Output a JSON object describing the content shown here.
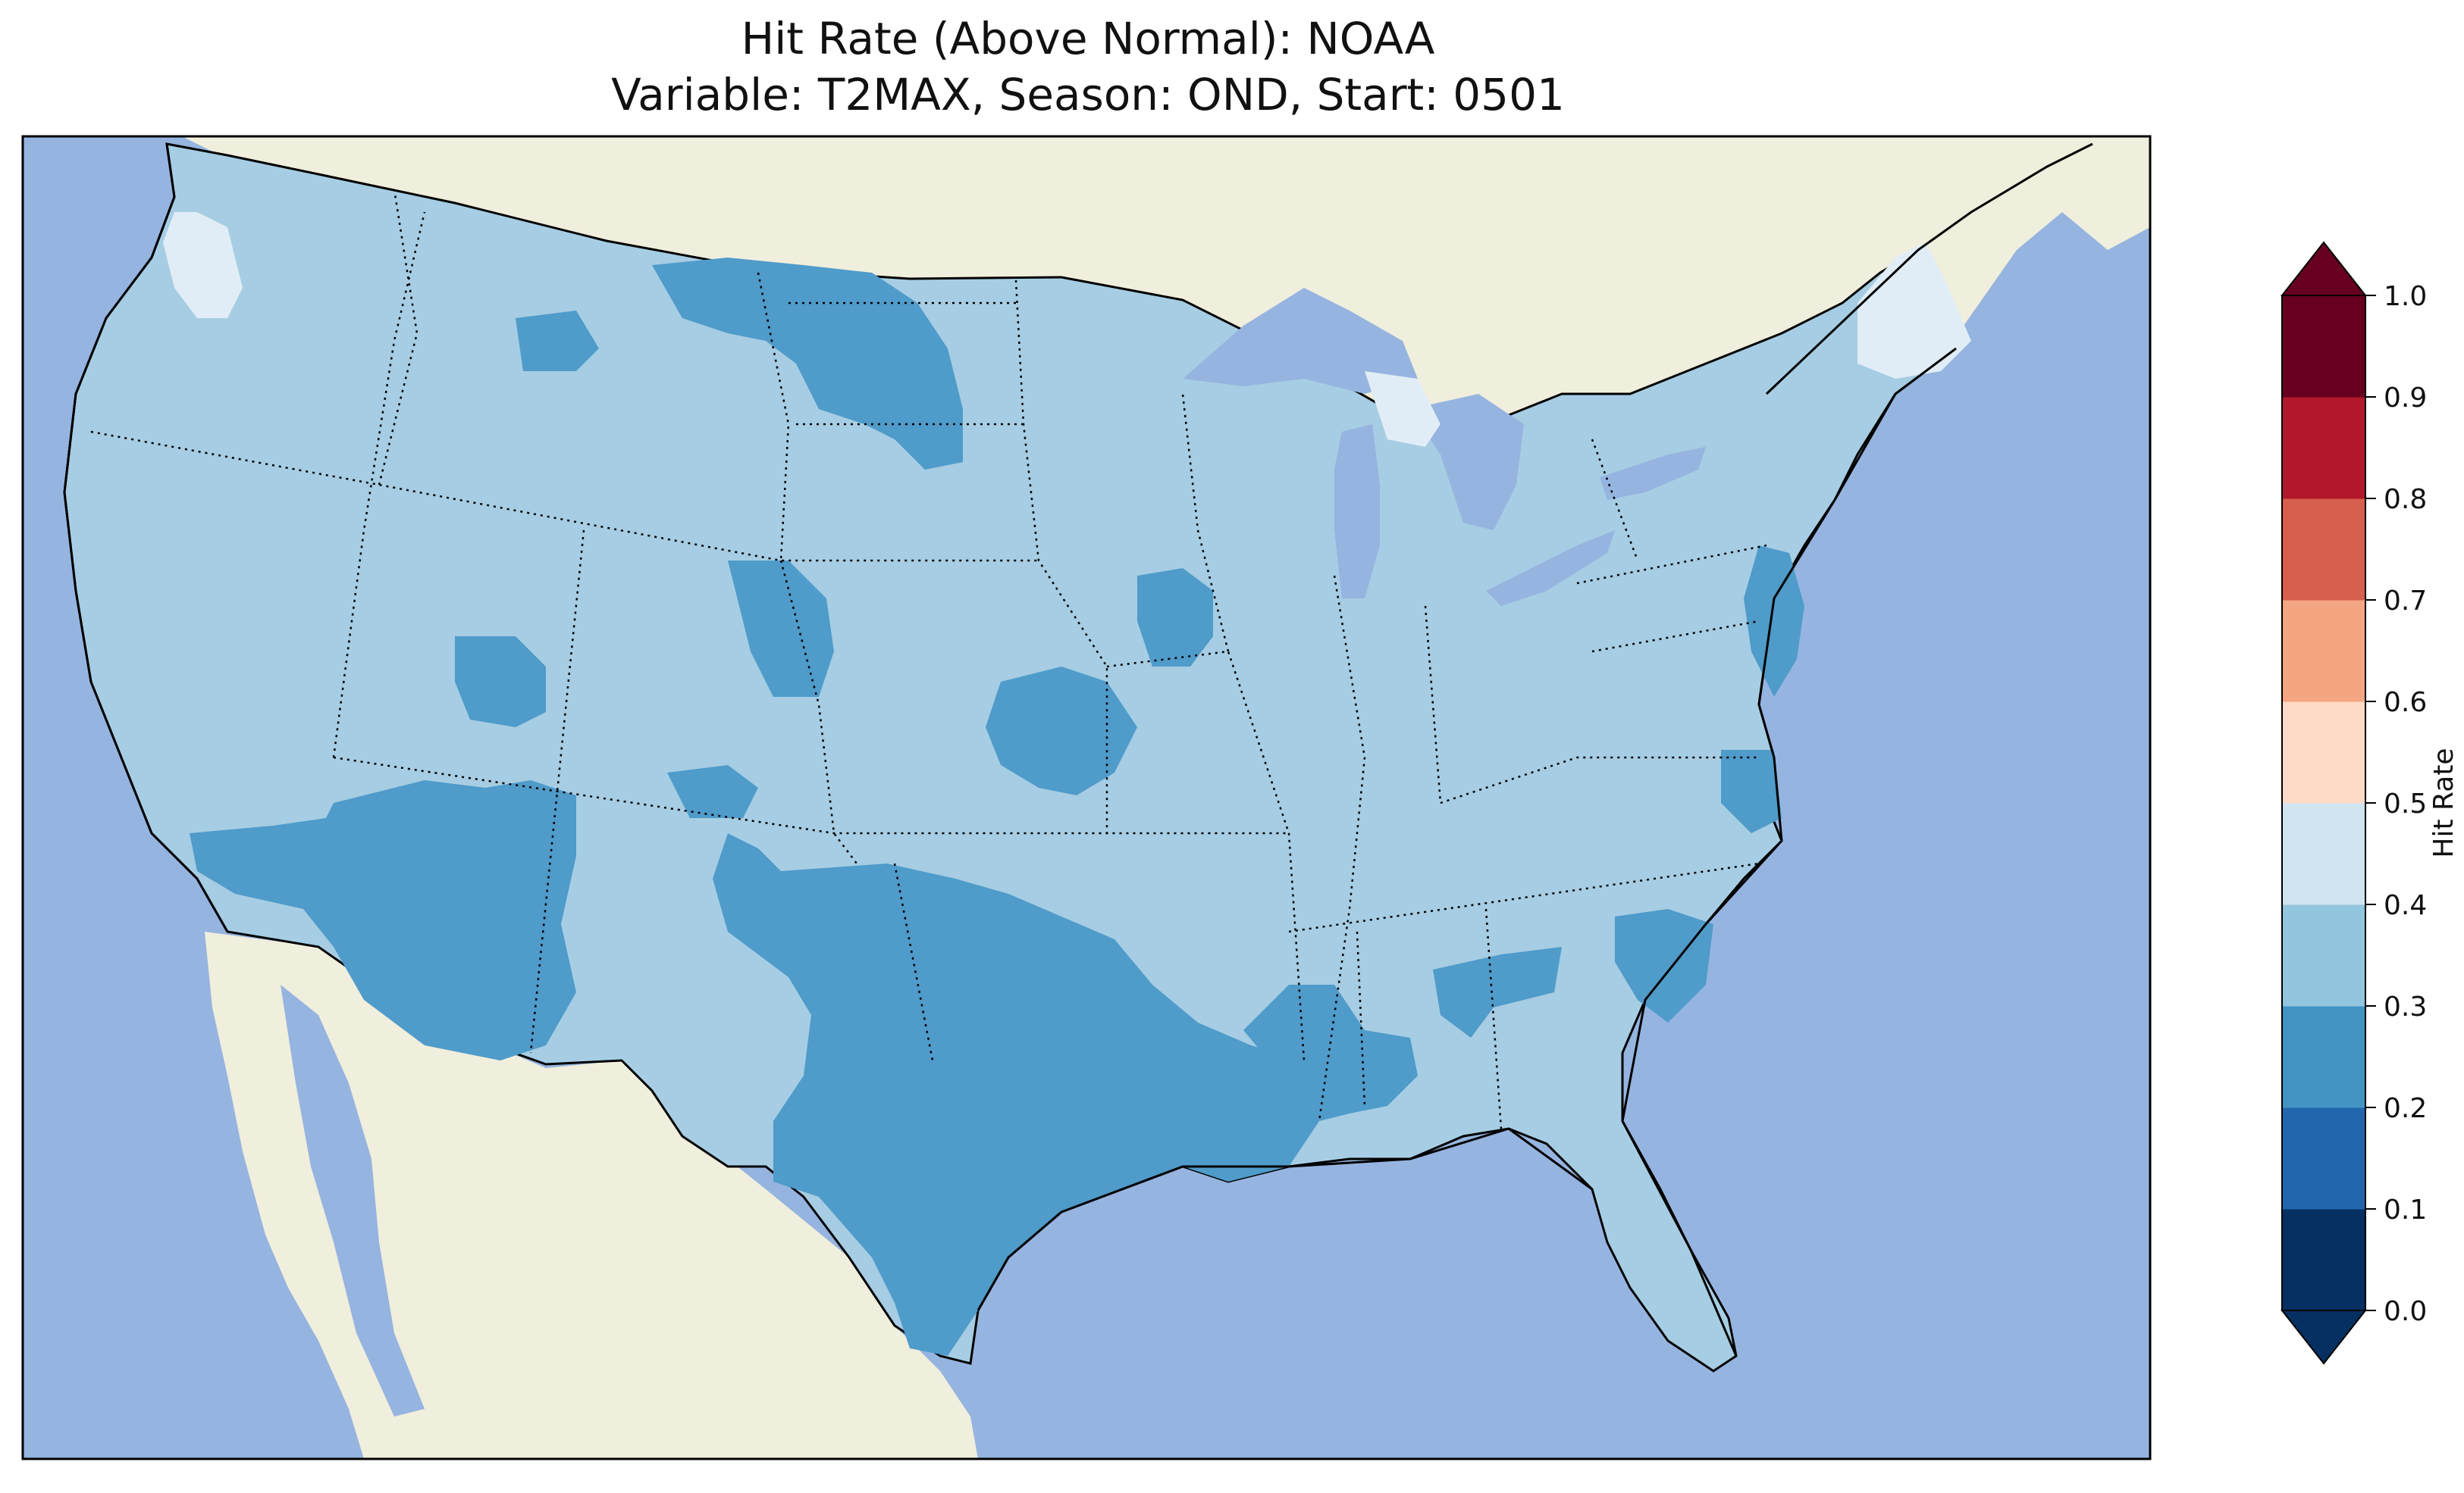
{
  "title": {
    "line1": "Hit Rate (Above Normal): NOAA",
    "line2": "Variable: T2MAX, Season: OND, Start: 0501"
  },
  "map": {
    "projection": "lambert-conformal",
    "extent": "contiguous-united-states",
    "ocean_color": "#96b4e0",
    "land_color": "#f0eedc",
    "lakes_color": "#96b4e0",
    "state_borders": "dotted",
    "coastlines": "solid"
  },
  "colorbar": {
    "label": "Hit Rate",
    "extend": "both",
    "ticks": [
      "0.0",
      "0.1",
      "0.2",
      "0.3",
      "0.4",
      "0.5",
      "0.6",
      "0.7",
      "0.8",
      "0.9",
      "1.0"
    ],
    "levels": [
      0.0,
      0.1,
      0.2,
      0.3,
      0.4,
      0.5,
      0.6,
      0.7,
      0.8,
      0.9,
      1.0
    ],
    "colors": [
      "#053061",
      "#2166ac",
      "#4393c3",
      "#92c5de",
      "#d1e5f0",
      "#fddbc7",
      "#f4a582",
      "#d6604d",
      "#b2182b",
      "#67001f"
    ],
    "under_color": "#053061",
    "over_color": "#67001f"
  },
  "chart_data": {
    "type": "heatmap",
    "title": "Hit Rate (Above Normal): NOAA\nVariable: T2MAX, Season: OND, Start: 0501",
    "colorbar_label": "Hit Rate",
    "vmin": 0.0,
    "vmax": 1.0,
    "regions": [
      {
        "name": "Most of CONUS",
        "hit_rate_range": [
          0.3,
          0.4
        ]
      },
      {
        "name": "Southwest (AZ, S. NV, S. CA, W. NM)",
        "hit_rate_range": [
          0.2,
          0.3
        ]
      },
      {
        "name": "Texas, Oklahoma, Louisiana",
        "hit_rate_range": [
          0.2,
          0.3
        ]
      },
      {
        "name": "Mississippi, SW Alabama",
        "hit_rate_range": [
          0.2,
          0.3
        ]
      },
      {
        "name": "Montana / North Dakota patches",
        "hit_rate_range": [
          0.2,
          0.3
        ]
      },
      {
        "name": "Kansas / Missouri patches",
        "hit_rate_range": [
          0.2,
          0.3
        ]
      },
      {
        "name": "New Jersey, Delaware, E. Maryland, NE North Carolina",
        "hit_rate_range": [
          0.2,
          0.3
        ]
      },
      {
        "name": "South Carolina coast",
        "hit_rate_range": [
          0.2,
          0.3
        ]
      },
      {
        "name": "Northern Maine",
        "hit_rate_range": [
          0.4,
          0.5
        ]
      },
      {
        "name": "Western Washington",
        "hit_rate_range": [
          0.4,
          0.5
        ]
      },
      {
        "name": "Upper Michigan",
        "hit_rate_range": [
          0.4,
          0.5
        ]
      }
    ]
  }
}
